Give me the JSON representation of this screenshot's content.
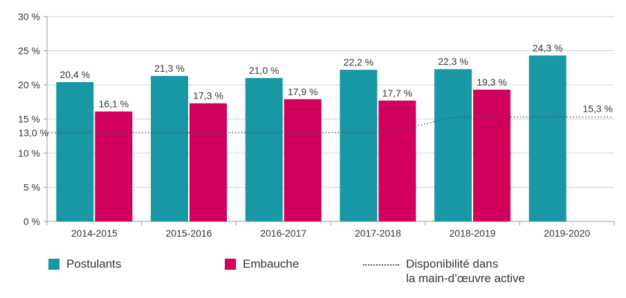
{
  "chart_data": {
    "type": "bar",
    "categories": [
      "2014-2015",
      "2015-2016",
      "2016-2017",
      "2017-2018",
      "2018-2019",
      "2019-2020"
    ],
    "series": [
      {
        "name": "Postulants",
        "color": "#1897a4",
        "values": [
          20.4,
          21.3,
          21.0,
          22.2,
          22.3,
          24.3
        ],
        "labels": [
          "20,4 %",
          "21,3 %",
          "21,0 %",
          "22,2 %",
          "22,3 %",
          "24,3 %"
        ]
      },
      {
        "name": "Embauche",
        "color": "#d1005b",
        "values": [
          16.1,
          17.3,
          17.9,
          17.7,
          19.3,
          null
        ],
        "labels": [
          "16,1 %",
          "17,3 %",
          "17,9 %",
          "17,7 %",
          "19,3 %",
          ""
        ]
      }
    ],
    "line": {
      "name": "Disponibilité dans la main-d’œuvre active",
      "name_lines": [
        "Disponibilité dans",
        "la main-d’œuvre active"
      ],
      "values": [
        13.0,
        13.0,
        13.0,
        13.0,
        15.3,
        15.3
      ],
      "start_label": "13,0 %",
      "end_label": "15,3 %",
      "style": "dotted"
    },
    "ylim": [
      0,
      30
    ],
    "yticks": [
      0,
      5,
      10,
      15,
      20,
      25,
      30
    ],
    "ytick_labels": [
      "0 %",
      "5 %",
      "10 %",
      "15 %",
      "20 %",
      "25 %",
      "30 %"
    ],
    "grid": true,
    "legend_position": "bottom"
  }
}
